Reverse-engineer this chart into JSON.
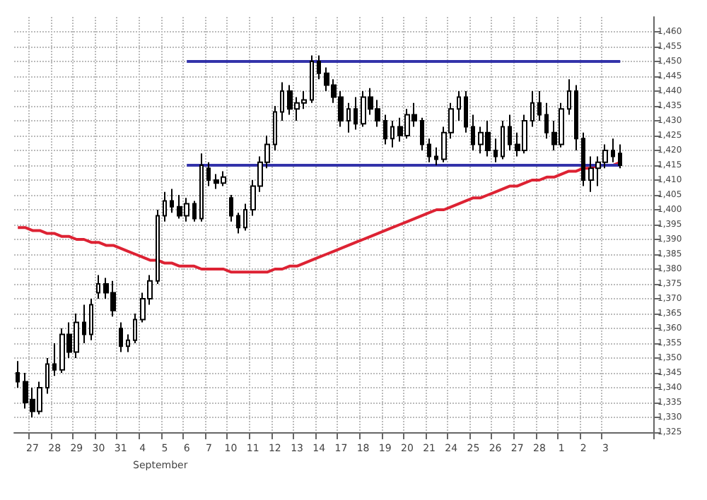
{
  "chart_data": {
    "type": "candlestick",
    "categories": [
      null,
      null,
      "27",
      null,
      null,
      "28",
      null,
      null,
      "29",
      null,
      null,
      "30",
      null,
      null,
      "31",
      null,
      null,
      "4",
      null,
      null,
      "5",
      null,
      null,
      "6",
      null,
      null,
      "7",
      null,
      null,
      "10",
      null,
      null,
      "11",
      null,
      null,
      "12",
      null,
      null,
      "13",
      null,
      null,
      "14",
      null,
      null,
      "17",
      null,
      null,
      "18",
      null,
      null,
      "19",
      null,
      null,
      "20",
      null,
      null,
      "21",
      null,
      null,
      "24",
      null,
      null,
      "25",
      null,
      null,
      "26",
      null,
      null,
      "27",
      null,
      null,
      "28",
      null,
      null,
      "1",
      null,
      null,
      "2",
      null,
      null,
      "3",
      null,
      null,
      null,
      null,
      null,
      null
    ],
    "ohlc": [
      [
        1345,
        1349,
        1340,
        1342
      ],
      [
        1342,
        1345,
        1333,
        1335
      ],
      [
        1336,
        1340,
        1330,
        1332
      ],
      [
        1332,
        1342,
        1331,
        1340
      ],
      [
        1340,
        1350,
        1338,
        1348
      ],
      [
        1348,
        1355,
        1344,
        1346
      ],
      [
        1346,
        1360,
        1345,
        1358
      ],
      [
        1358,
        1362,
        1350,
        1352
      ],
      [
        1352,
        1365,
        1350,
        1362
      ],
      [
        1362,
        1368,
        1355,
        1358
      ],
      [
        1358,
        1370,
        1356,
        1368
      ],
      [
        1372,
        1378,
        1370,
        1375
      ],
      [
        1375,
        1377,
        1370,
        1372
      ],
      [
        1372,
        1376,
        1364,
        1366
      ],
      [
        1360,
        1362,
        1352,
        1354
      ],
      [
        1354,
        1358,
        1352,
        1356
      ],
      [
        1356,
        1365,
        1355,
        1363
      ],
      [
        1363,
        1372,
        1362,
        1370
      ],
      [
        1370,
        1378,
        1368,
        1376
      ],
      [
        1376,
        1400,
        1375,
        1398
      ],
      [
        1398,
        1406,
        1396,
        1403
      ],
      [
        1403,
        1407,
        1399,
        1401
      ],
      [
        1401,
        1405,
        1397,
        1398
      ],
      [
        1398,
        1404,
        1396,
        1402
      ],
      [
        1402,
        1403,
        1396,
        1397
      ],
      [
        1397,
        1419,
        1396,
        1415
      ],
      [
        1414,
        1416,
        1408,
        1410
      ],
      [
        1410,
        1412,
        1407,
        1409
      ],
      [
        1409,
        1413,
        1408,
        1411
      ],
      [
        1404,
        1405,
        1396,
        1398
      ],
      [
        1398,
        1399,
        1392,
        1394
      ],
      [
        1394,
        1402,
        1393,
        1400
      ],
      [
        1400,
        1410,
        1398,
        1408
      ],
      [
        1408,
        1418,
        1406,
        1416
      ],
      [
        1416,
        1425,
        1414,
        1422
      ],
      [
        1422,
        1435,
        1420,
        1433
      ],
      [
        1433,
        1443,
        1430,
        1440
      ],
      [
        1440,
        1442,
        1432,
        1434
      ],
      [
        1434,
        1438,
        1430,
        1436
      ],
      [
        1436,
        1440,
        1434,
        1437
      ],
      [
        1437,
        1452,
        1436,
        1450
      ],
      [
        1450,
        1452,
        1444,
        1446
      ],
      [
        1446,
        1448,
        1440,
        1442
      ],
      [
        1442,
        1444,
        1436,
        1438
      ],
      [
        1438,
        1440,
        1428,
        1430
      ],
      [
        1430,
        1436,
        1426,
        1434
      ],
      [
        1434,
        1438,
        1427,
        1429
      ],
      [
        1429,
        1440,
        1428,
        1438
      ],
      [
        1438,
        1441,
        1432,
        1434
      ],
      [
        1434,
        1437,
        1428,
        1430
      ],
      [
        1430,
        1432,
        1422,
        1424
      ],
      [
        1424,
        1430,
        1421,
        1428
      ],
      [
        1428,
        1431,
        1423,
        1425
      ],
      [
        1425,
        1434,
        1424,
        1432
      ],
      [
        1432,
        1436,
        1428,
        1430
      ],
      [
        1430,
        1431,
        1420,
        1422
      ],
      [
        1422,
        1424,
        1416,
        1418
      ],
      [
        1418,
        1421,
        1415,
        1417
      ],
      [
        1417,
        1428,
        1416,
        1426
      ],
      [
        1426,
        1436,
        1424,
        1434
      ],
      [
        1434,
        1440,
        1430,
        1438
      ],
      [
        1438,
        1440,
        1426,
        1428
      ],
      [
        1428,
        1432,
        1420,
        1422
      ],
      [
        1422,
        1428,
        1419,
        1426
      ],
      [
        1426,
        1430,
        1418,
        1420
      ],
      [
        1420,
        1424,
        1416,
        1418
      ],
      [
        1418,
        1430,
        1417,
        1428
      ],
      [
        1428,
        1432,
        1420,
        1422
      ],
      [
        1422,
        1426,
        1418,
        1420
      ],
      [
        1420,
        1432,
        1419,
        1430
      ],
      [
        1430,
        1440,
        1428,
        1436
      ],
      [
        1436,
        1440,
        1430,
        1432
      ],
      [
        1432,
        1436,
        1424,
        1426
      ],
      [
        1426,
        1430,
        1420,
        1422
      ],
      [
        1422,
        1436,
        1421,
        1434
      ],
      [
        1434,
        1444,
        1432,
        1440
      ],
      [
        1440,
        1442,
        1420,
        1424
      ],
      [
        1424,
        1426,
        1408,
        1410
      ],
      [
        1410,
        1418,
        1406,
        1414
      ],
      [
        1414,
        1418,
        1408,
        1416
      ],
      [
        1416,
        1422,
        1414,
        1420
      ],
      [
        1420,
        1424,
        1416,
        1418
      ],
      [
        1419,
        1422,
        1414,
        1415
      ],
      null,
      null,
      null,
      null
    ],
    "series": [
      {
        "type": "line",
        "color": "#dd2233",
        "values": [
          1394,
          1394,
          1393,
          1393,
          1392,
          1392,
          1391,
          1391,
          1390,
          1390,
          1389,
          1389,
          1388,
          1388,
          1387,
          1386,
          1385,
          1384,
          1383,
          1383,
          1382,
          1382,
          1381,
          1381,
          1381,
          1380,
          1380,
          1380,
          1380,
          1379,
          1379,
          1379,
          1379,
          1379,
          1379,
          1380,
          1380,
          1381,
          1381,
          1382,
          1383,
          1384,
          1385,
          1386,
          1387,
          1388,
          1389,
          1390,
          1391,
          1392,
          1393,
          1394,
          1395,
          1396,
          1397,
          1398,
          1399,
          1400,
          1400,
          1401,
          1402,
          1403,
          1404,
          1404,
          1405,
          1406,
          1407,
          1408,
          1408,
          1409,
          1410,
          1410,
          1411,
          1411,
          1412,
          1413,
          1413,
          1414,
          1414,
          1415,
          1415,
          1415,
          1416,
          null,
          null,
          null,
          null
        ]
      },
      {
        "type": "line",
        "color": "#3333aa",
        "values": [
          null,
          null,
          null,
          null,
          null,
          null,
          null,
          null,
          null,
          null,
          null,
          null,
          null,
          null,
          null,
          null,
          null,
          null,
          null,
          null,
          null,
          null,
          null,
          1450,
          1450,
          1450,
          1450,
          1450,
          1450,
          1450,
          1450,
          1450,
          1450,
          1450,
          1450,
          1450,
          1450,
          1450,
          1450,
          1450,
          1450,
          1450,
          1450,
          1450,
          1450,
          1450,
          1450,
          1450,
          1450,
          1450,
          1450,
          1450,
          1450,
          1450,
          1450,
          1450,
          1450,
          1450,
          1450,
          1450,
          1450,
          1450,
          1450,
          1450,
          1450,
          1450,
          1450,
          1450,
          1450,
          1450,
          1450,
          1450,
          1450,
          1450,
          1450,
          1450,
          1450,
          1450,
          1450,
          1450,
          1450,
          1450,
          1450,
          null,
          null,
          null,
          null
        ]
      },
      {
        "type": "line",
        "color": "#3333aa",
        "values": [
          null,
          null,
          null,
          null,
          null,
          null,
          null,
          null,
          null,
          null,
          null,
          null,
          null,
          null,
          null,
          null,
          null,
          null,
          null,
          null,
          null,
          null,
          null,
          1415,
          1415,
          1415,
          1415,
          1415,
          1415,
          1415,
          1415,
          1415,
          1415,
          1415,
          1415,
          1415,
          1415,
          1415,
          1415,
          1415,
          1415,
          1415,
          1415,
          1415,
          1415,
          1415,
          1415,
          1415,
          1415,
          1415,
          1415,
          1415,
          1415,
          1415,
          1415,
          1415,
          1415,
          1415,
          1415,
          1415,
          1415,
          1415,
          1415,
          1415,
          1415,
          1415,
          1415,
          1415,
          1415,
          1415,
          1415,
          1415,
          1415,
          1415,
          1415,
          1415,
          1415,
          1415,
          1415,
          1415,
          1415,
          1415,
          1415,
          null,
          null,
          null,
          null
        ]
      }
    ],
    "ylim": [
      1325,
      1465
    ],
    "yticks": [
      {
        "value": 1325,
        "label": "1,325"
      },
      {
        "value": 1330,
        "label": "1,330"
      },
      {
        "value": 1335,
        "label": "1,335"
      },
      {
        "value": 1340,
        "label": "1,340"
      },
      {
        "value": 1345,
        "label": "1,345"
      },
      {
        "value": 1350,
        "label": "1,350"
      },
      {
        "value": 1355,
        "label": "1,355"
      },
      {
        "value": 1360,
        "label": "1,360"
      },
      {
        "value": 1365,
        "label": "1,365"
      },
      {
        "value": 1370,
        "label": "1,370"
      },
      {
        "value": 1375,
        "label": "1,375"
      },
      {
        "value": 1380,
        "label": "1,380"
      },
      {
        "value": 1385,
        "label": "1,385"
      },
      {
        "value": 1390,
        "label": "1,390"
      },
      {
        "value": 1395,
        "label": "1,395"
      },
      {
        "value": 1400,
        "label": "1,400"
      },
      {
        "value": 1405,
        "label": "1,405"
      },
      {
        "value": 1410,
        "label": "1,410"
      },
      {
        "value": 1415,
        "label": "1,415"
      },
      {
        "value": 1420,
        "label": "1,420"
      },
      {
        "value": 1425,
        "label": "1,425"
      },
      {
        "value": 1430,
        "label": "1,430"
      },
      {
        "value": 1435,
        "label": "1,435"
      },
      {
        "value": 1440,
        "label": "1,440"
      },
      {
        "value": 1445,
        "label": "1,445"
      },
      {
        "value": 1450,
        "label": "1,450"
      },
      {
        "value": 1455,
        "label": "1,455"
      },
      {
        "value": 1460,
        "label": "1,460"
      }
    ],
    "annotations": [
      "September"
    ],
    "grid": true,
    "marker": "none"
  }
}
